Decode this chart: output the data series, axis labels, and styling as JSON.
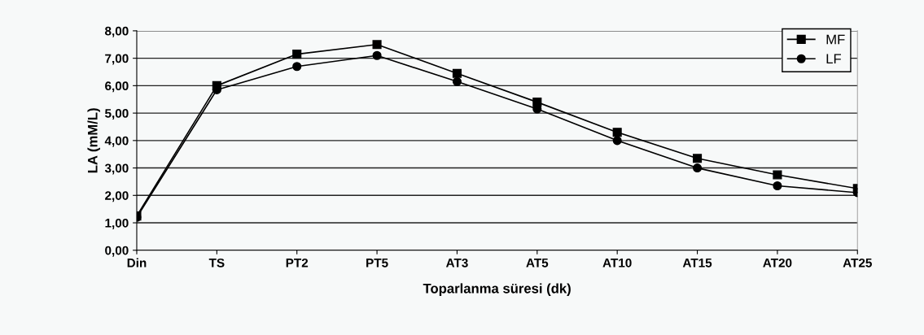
{
  "chart_data": {
    "type": "line",
    "xlabel": "Toparlanma süresi (dk)",
    "ylabel": "LA (mM/L)",
    "categories": [
      "Din",
      "TS",
      "PT2",
      "PT5",
      "AT3",
      "AT5",
      "AT10",
      "AT15",
      "AT20",
      "AT25"
    ],
    "series": [
      {
        "name": "MF",
        "color": "#000000",
        "marker": "square",
        "values": [
          1.25,
          6.0,
          7.15,
          7.5,
          6.45,
          5.4,
          4.3,
          3.35,
          2.75,
          2.25
        ]
      },
      {
        "name": "LF",
        "color": "#000000",
        "marker": "circle",
        "values": [
          1.2,
          5.85,
          6.7,
          7.1,
          6.15,
          5.15,
          4.0,
          3.0,
          2.35,
          2.1
        ]
      }
    ],
    "ylim": [
      0,
      8
    ],
    "yticks": [
      {
        "value": 0,
        "label": "0,00"
      },
      {
        "value": 1,
        "label": "1,00"
      },
      {
        "value": 2,
        "label": "2,00"
      },
      {
        "value": 3,
        "label": "3,00"
      },
      {
        "value": 4,
        "label": "4,00"
      },
      {
        "value": 5,
        "label": "5,00"
      },
      {
        "value": 6,
        "label": "6,00"
      },
      {
        "value": 7,
        "label": "7,00"
      },
      {
        "value": 8,
        "label": "8,00"
      }
    ],
    "grid": "y",
    "legend": "top right",
    "line_style": "solid"
  }
}
